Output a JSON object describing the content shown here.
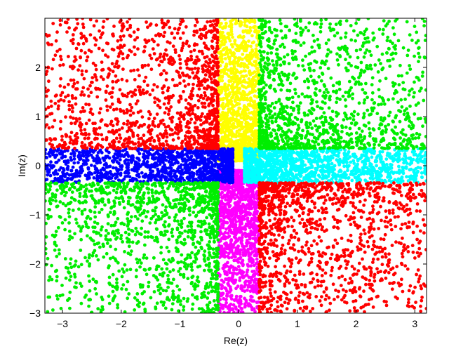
{
  "chart_data": {
    "type": "scatter",
    "title": "",
    "xlabel": "Re(z)",
    "ylabel": "Im(z)",
    "xlim": [
      -3.3,
      3.2
    ],
    "ylim": [
      -3.0,
      3.0
    ],
    "xticks": [
      -3,
      -2,
      -1,
      0,
      1,
      2,
      3
    ],
    "yticks": [
      -3,
      -2,
      -1,
      0,
      1,
      2
    ],
    "xtick_labels": [
      "−3",
      "−2",
      "−1",
      "0",
      "1",
      "2",
      "3"
    ],
    "ytick_labels": [
      "−3",
      "−2",
      "−1",
      "0",
      "1",
      "2"
    ],
    "grid": false,
    "legend": "none",
    "colors": {
      "red": "#ff0000",
      "green": "#00ee00",
      "blue": "#0000ff",
      "yellow": "#ffff00",
      "cyan": "#00ffff",
      "magenta": "#ff00ff"
    },
    "regions": [
      {
        "color": "yellow",
        "description_range": {
          "re": [
            -0.35,
            0.35
          ],
          "im": [
            0.1,
            3.0
          ]
        }
      },
      {
        "color": "magenta",
        "description_range": {
          "re": [
            -0.35,
            0.35
          ],
          "im": [
            -3.0,
            -0.1
          ]
        }
      },
      {
        "color": "cyan",
        "description_range": {
          "re": [
            0.1,
            3.2
          ],
          "im": [
            -0.35,
            0.35
          ]
        }
      },
      {
        "color": "blue",
        "description_range": {
          "re": [
            -3.3,
            -0.1
          ],
          "im": [
            -0.35,
            0.35
          ]
        }
      },
      {
        "color": "red",
        "description_range": {
          "re": [
            -3.3,
            -0.35
          ],
          "im": [
            0.35,
            3.0
          ]
        }
      },
      {
        "color": "green",
        "description_range": {
          "re": [
            0.35,
            3.2
          ],
          "im": [
            0.35,
            3.0
          ]
        }
      },
      {
        "color": "green",
        "description_range": {
          "re": [
            -3.3,
            -0.35
          ],
          "im": [
            -3.0,
            -0.35
          ]
        }
      },
      {
        "color": "red",
        "description_range": {
          "re": [
            0.35,
            3.2
          ],
          "im": [
            -3.0,
            -0.35
          ]
        }
      }
    ],
    "points_per_region": 1300
  }
}
